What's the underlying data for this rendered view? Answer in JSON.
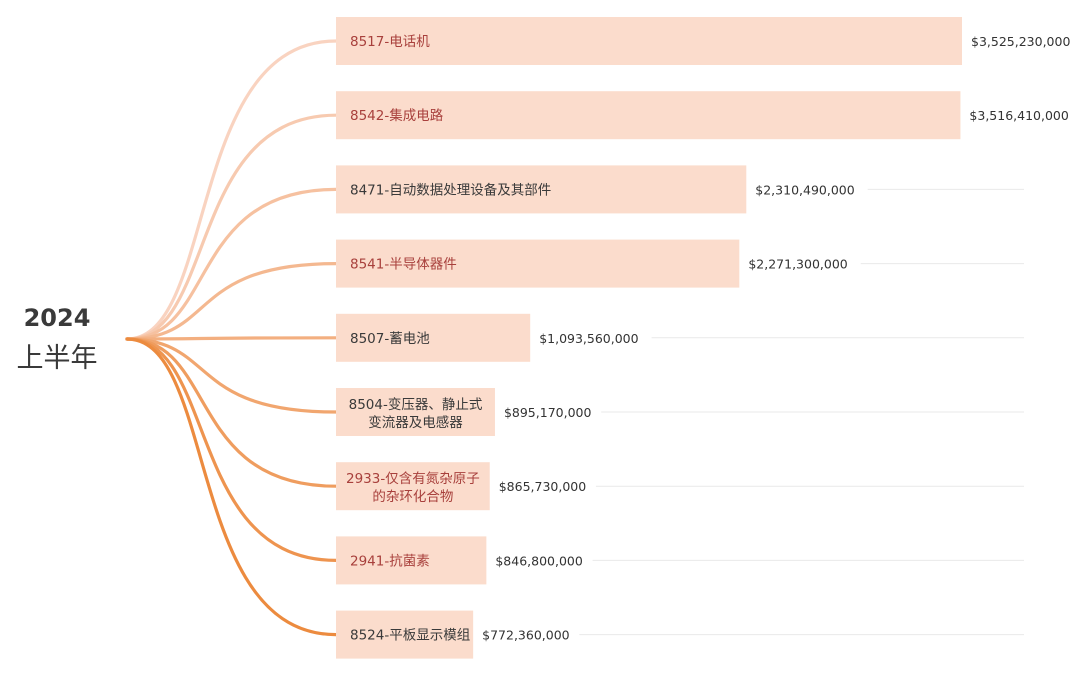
{
  "root": {
    "year": "2024",
    "period": "上半年"
  },
  "colors": {
    "bar_fill": "#fbdccc",
    "label_dark": "#3a3a3a",
    "label_accent": "#a8403c",
    "gridline": "#e9e9e9",
    "curve_light": "#f9d3c0",
    "curve_dark": "#ec8b3f"
  },
  "chart_data": {
    "type": "bar",
    "orientation": "horizontal",
    "title": "",
    "xlabel": "",
    "ylabel": "",
    "xlim": [
      0,
      3525230000
    ],
    "grid": true,
    "categories": [
      "8517-电话机",
      "8542-集成电路",
      "8471-自动数据处理设备及其部件",
      "8541-半导体器件",
      "8507-蓄电池",
      "8504-变压器、静止式\n变流器及电感器",
      "2933-仅含有氮杂原子\n的杂环化合物",
      "2941-抗菌素",
      "8524-平板显示模组"
    ],
    "values": [
      3525230000,
      3516410000,
      2310490000,
      2271300000,
      1093560000,
      895170000,
      865730000,
      846800000,
      772360000
    ],
    "value_labels": [
      "$3,525,230,000",
      "$3,516,410,000",
      "$2,310,490,000",
      "$2,271,300,000",
      "$1,093,560,000",
      "$895,170,000",
      "$865,730,000",
      "$846,800,000",
      "$772,360,000"
    ],
    "label_colors": [
      "#a8403c",
      "#a8403c",
      "#3a3a3a",
      "#a8403c",
      "#3a3a3a",
      "#3a3a3a",
      "#a8403c",
      "#a8403c",
      "#3a3a3a"
    ]
  }
}
